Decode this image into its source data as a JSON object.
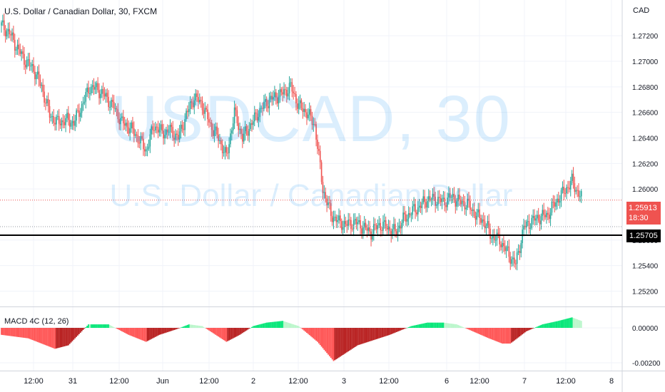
{
  "title": "U.S. Dollar / Canadian Dollar, 30, FXCM",
  "watermark_symbol": "USDCAD, 30",
  "watermark_name": "U.S. Dollar / Canadian Dollar",
  "currency": "CAD",
  "current_price": "1.25913",
  "countdown": "18:30",
  "hline_price": "1.25705",
  "indicator_title": "MACD 4C (12, 26)",
  "chart_data": {
    "type": "candlestick",
    "price_axis": {
      "range": [
        1.2508,
        1.2748
      ],
      "ticks": [
        "1.27200",
        "1.27000",
        "1.26800",
        "1.26600",
        "1.26400",
        "1.26200",
        "1.26000",
        "1.25600",
        "1.25400",
        "1.25200"
      ]
    },
    "macd_axis": {
      "ticks": [
        "0.00000",
        "-0.00200"
      ]
    },
    "x_ticks": [
      "12:00",
      "31",
      "12:00",
      "Jun",
      "12:00",
      "2",
      "12:00",
      "3",
      "12:00",
      "6",
      "12:00",
      "7",
      "12:00",
      "8"
    ],
    "close_anchors": [
      [
        0,
        1.2728
      ],
      [
        6,
        1.2722
      ],
      [
        12,
        1.271
      ],
      [
        18,
        1.27
      ],
      [
        24,
        1.2694
      ],
      [
        30,
        1.268
      ],
      [
        36,
        1.2658
      ],
      [
        42,
        1.2652
      ],
      [
        48,
        1.2654
      ],
      [
        54,
        1.2652
      ],
      [
        60,
        1.2665
      ],
      [
        66,
        1.268
      ],
      [
        72,
        1.2678
      ],
      [
        78,
        1.2672
      ],
      [
        84,
        1.2664
      ],
      [
        90,
        1.2652
      ],
      [
        96,
        1.2648
      ],
      [
        102,
        1.264
      ],
      [
        108,
        1.263
      ],
      [
        114,
        1.265
      ],
      [
        120,
        1.2644
      ],
      [
        126,
        1.2646
      ],
      [
        132,
        1.264
      ],
      [
        138,
        1.2658
      ],
      [
        144,
        1.2672
      ],
      [
        150,
        1.2666
      ],
      [
        156,
        1.265
      ],
      [
        162,
        1.264
      ],
      [
        168,
        1.2625
      ],
      [
        174,
        1.266
      ],
      [
        180,
        1.264
      ],
      [
        186,
        1.265
      ],
      [
        192,
        1.266
      ],
      [
        198,
        1.2668
      ],
      [
        204,
        1.2672
      ],
      [
        210,
        1.2675
      ],
      [
        216,
        1.268
      ],
      [
        222,
        1.2665
      ],
      [
        228,
        1.266
      ],
      [
        234,
        1.265
      ],
      [
        240,
        1.26
      ],
      [
        246,
        1.258
      ],
      [
        252,
        1.2574
      ],
      [
        258,
        1.2572
      ],
      [
        264,
        1.2574
      ],
      [
        270,
        1.257
      ],
      [
        276,
        1.2566
      ],
      [
        282,
        1.2572
      ],
      [
        288,
        1.257
      ],
      [
        294,
        1.2566
      ],
      [
        300,
        1.2576
      ],
      [
        306,
        1.2582
      ],
      [
        312,
        1.2586
      ],
      [
        318,
        1.2592
      ],
      [
        324,
        1.2592
      ],
      [
        330,
        1.259
      ],
      [
        336,
        1.2594
      ],
      [
        342,
        1.259
      ],
      [
        348,
        1.2588
      ],
      [
        354,
        1.258
      ],
      [
        360,
        1.2575
      ],
      [
        366,
        1.2563
      ],
      [
        372,
        1.256
      ],
      [
        378,
        1.255
      ],
      [
        384,
        1.2541
      ],
      [
        390,
        1.257
      ],
      [
        396,
        1.2575
      ],
      [
        402,
        1.2578
      ],
      [
        408,
        1.258
      ],
      [
        414,
        1.259
      ],
      [
        420,
        1.2598
      ],
      [
        426,
        1.2606
      ],
      [
        429,
        1.26
      ],
      [
        433,
        1.2593
      ]
    ],
    "macd_anchors": [
      [
        0,
        -0.0004
      ],
      [
        20,
        -0.0006
      ],
      [
        40,
        -0.0012
      ],
      [
        50,
        -0.001
      ],
      [
        65,
        0.0002
      ],
      [
        80,
        0.0002
      ],
      [
        95,
        -0.0004
      ],
      [
        108,
        -0.0008
      ],
      [
        118,
        -0.0004
      ],
      [
        130,
        -0.0001
      ],
      [
        140,
        0.0002
      ],
      [
        150,
        0.0001
      ],
      [
        160,
        -0.0004
      ],
      [
        168,
        -0.0008
      ],
      [
        178,
        -0.0004
      ],
      [
        188,
        0.0001
      ],
      [
        198,
        0.0003
      ],
      [
        210,
        0.0004
      ],
      [
        222,
        0.0001
      ],
      [
        236,
        -0.0008
      ],
      [
        248,
        -0.0019
      ],
      [
        256,
        -0.0015
      ],
      [
        266,
        -0.001
      ],
      [
        278,
        -0.0007
      ],
      [
        290,
        -0.0004
      ],
      [
        306,
        0.0001
      ],
      [
        318,
        0.0003
      ],
      [
        330,
        0.0003
      ],
      [
        340,
        0.0002
      ],
      [
        352,
        -0.0002
      ],
      [
        364,
        -0.0006
      ],
      [
        374,
        -0.0009
      ],
      [
        380,
        -0.0009
      ],
      [
        392,
        -0.0002
      ],
      [
        404,
        0.0002
      ],
      [
        416,
        0.0004
      ],
      [
        426,
        0.0006
      ],
      [
        433,
        0.0004
      ]
    ]
  }
}
